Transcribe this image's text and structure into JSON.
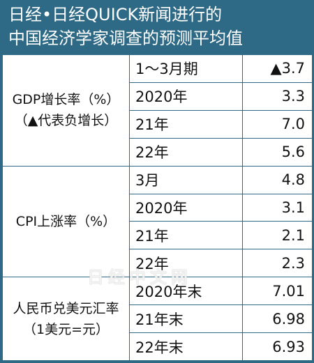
{
  "header": {
    "line1": "日经•日经QUICK新闻进行的",
    "line2": "中国经济学家调查的预测平均值"
  },
  "sections": [
    {
      "label_line1": "GDP增长率（%）",
      "label_line2": "（▲代表负增长）",
      "rows": [
        {
          "period": "1～3月期",
          "value": "▲3.7"
        },
        {
          "period": "2020年",
          "value": "3.3"
        },
        {
          "period": "21年",
          "value": "7.0"
        },
        {
          "period": "22年",
          "value": "5.6"
        }
      ]
    },
    {
      "label_line1": "CPI上涨率（%）",
      "label_line2": "",
      "rows": [
        {
          "period": "3月",
          "value": "4.8"
        },
        {
          "period": "2020年",
          "value": "3.1"
        },
        {
          "period": "21年",
          "value": "2.1"
        },
        {
          "period": "22年",
          "value": "2.3"
        }
      ]
    },
    {
      "label_line1": "人民币兑美元汇率",
      "label_line2": "（1美元=元）",
      "rows": [
        {
          "period": "2020年末",
          "value": "7.01"
        },
        {
          "period": "21年末",
          "value": "6.98"
        },
        {
          "period": "22年末",
          "value": "6.93"
        }
      ]
    }
  ],
  "watermark": "日经中文网"
}
